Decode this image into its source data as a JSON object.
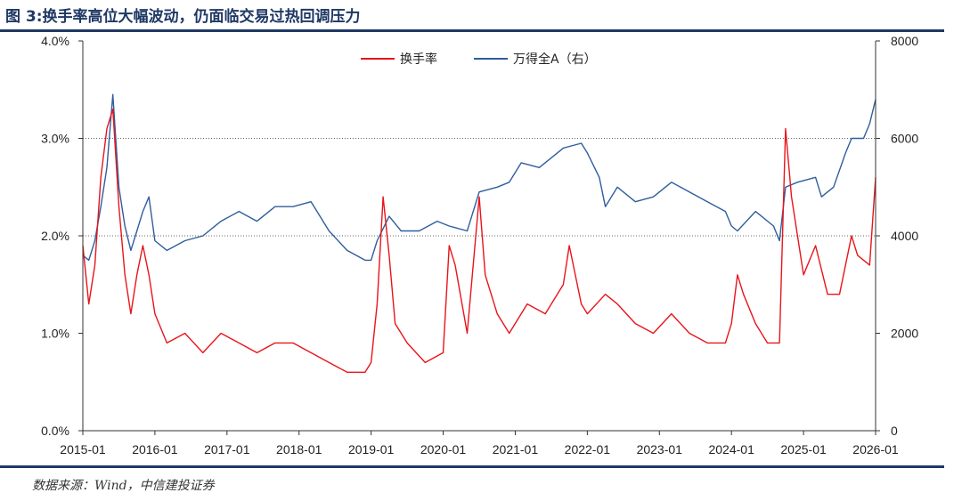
{
  "figure": {
    "title": "图 3:换手率高位大幅波动，仍面临交易过热回调压力",
    "source": "数据来源：Wind，中信建投证券"
  },
  "colors": {
    "turnover": "#e8141b",
    "index": "#2e5e9c",
    "axis": "#333333",
    "gridline": "#666666",
    "rule": "#1f3864"
  },
  "chart_data": {
    "type": "line",
    "title": "",
    "xlabel": "",
    "ylabel_left": "",
    "ylabel_right": "",
    "x_ticks": [
      "2015-01",
      "2016-01",
      "2017-01",
      "2018-01",
      "2019-01",
      "2020-01",
      "2021-01",
      "2022-01",
      "2023-01",
      "2024-01",
      "2025-01",
      "2026-01"
    ],
    "y_left": {
      "lim": [
        0,
        4
      ],
      "ticks": [
        "0.0%",
        "1.0%",
        "2.0%",
        "3.0%",
        "4.0%"
      ],
      "format": "percent"
    },
    "y_right": {
      "lim": [
        0,
        8000
      ],
      "ticks": [
        "0",
        "2000",
        "4000",
        "6000",
        "8000"
      ]
    },
    "grid": "horizontal dotted at 2.0% and 3.0%",
    "legend": {
      "position": "top-center",
      "entries": [
        "换手率",
        "万得全A（右）"
      ]
    },
    "x_lim": [
      "2015-01",
      "2026-01"
    ],
    "series": [
      {
        "name": "换手率",
        "axis": "left",
        "x": [
          "2015-01",
          "2015-02",
          "2015-03",
          "2015-04",
          "2015-05",
          "2015-06",
          "2015-07",
          "2015-08",
          "2015-09",
          "2015-10",
          "2015-11",
          "2015-12",
          "2016-01",
          "2016-03",
          "2016-06",
          "2016-09",
          "2016-12",
          "2017-03",
          "2017-06",
          "2017-09",
          "2017-12",
          "2018-03",
          "2018-06",
          "2018-09",
          "2018-12",
          "2019-01",
          "2019-02",
          "2019-03",
          "2019-04",
          "2019-05",
          "2019-07",
          "2019-10",
          "2020-01",
          "2020-02",
          "2020-03",
          "2020-05",
          "2020-07",
          "2020-08",
          "2020-10",
          "2020-12",
          "2021-03",
          "2021-06",
          "2021-09",
          "2021-10",
          "2021-12",
          "2022-01",
          "2022-04",
          "2022-06",
          "2022-09",
          "2022-12",
          "2023-03",
          "2023-06",
          "2023-09",
          "2023-12",
          "2024-01",
          "2024-02",
          "2024-03",
          "2024-05",
          "2024-07",
          "2024-09",
          "2024-10",
          "2024-11",
          "2025-01",
          "2025-03",
          "2025-05",
          "2025-07",
          "2025-09",
          "2025-10",
          "2025-12",
          "2026-01"
        ],
        "values": [
          1.9,
          1.3,
          1.7,
          2.6,
          3.1,
          3.3,
          2.3,
          1.6,
          1.2,
          1.6,
          1.9,
          1.6,
          1.2,
          0.9,
          1.0,
          0.8,
          1.0,
          0.9,
          0.8,
          0.9,
          0.9,
          0.8,
          0.7,
          0.6,
          0.6,
          0.7,
          1.3,
          2.4,
          1.8,
          1.1,
          0.9,
          0.7,
          0.8,
          1.9,
          1.7,
          1.0,
          2.4,
          1.6,
          1.2,
          1.0,
          1.3,
          1.2,
          1.5,
          1.9,
          1.3,
          1.2,
          1.4,
          1.3,
          1.1,
          1.0,
          1.2,
          1.0,
          0.9,
          0.9,
          1.1,
          1.6,
          1.4,
          1.1,
          0.9,
          0.9,
          3.1,
          2.4,
          1.6,
          1.9,
          1.4,
          1.4,
          2.0,
          1.8,
          1.7,
          2.6
        ]
      },
      {
        "name": "万得全A（右）",
        "axis": "right",
        "x": [
          "2015-01",
          "2015-02",
          "2015-03",
          "2015-04",
          "2015-05",
          "2015-06",
          "2015-07",
          "2015-08",
          "2015-09",
          "2015-10",
          "2015-11",
          "2015-12",
          "2016-01",
          "2016-03",
          "2016-06",
          "2016-09",
          "2016-12",
          "2017-03",
          "2017-06",
          "2017-09",
          "2017-12",
          "2018-03",
          "2018-06",
          "2018-09",
          "2018-12",
          "2019-01",
          "2019-02",
          "2019-04",
          "2019-06",
          "2019-09",
          "2019-12",
          "2020-02",
          "2020-05",
          "2020-07",
          "2020-10",
          "2020-12",
          "2021-02",
          "2021-05",
          "2021-09",
          "2021-12",
          "2022-01",
          "2022-03",
          "2022-04",
          "2022-06",
          "2022-09",
          "2022-12",
          "2023-03",
          "2023-06",
          "2023-09",
          "2023-12",
          "2024-01",
          "2024-02",
          "2024-05",
          "2024-08",
          "2024-09",
          "2024-10",
          "2024-12",
          "2025-03",
          "2025-04",
          "2025-06",
          "2025-08",
          "2025-09",
          "2025-11",
          "2025-12",
          "2026-01"
        ],
        "values": [
          3600,
          3500,
          3900,
          4600,
          5400,
          6900,
          5000,
          4200,
          3700,
          4100,
          4500,
          4800,
          3900,
          3700,
          3900,
          4000,
          4300,
          4500,
          4300,
          4600,
          4600,
          4700,
          4100,
          3700,
          3500,
          3500,
          3900,
          4400,
          4100,
          4100,
          4300,
          4200,
          4100,
          4900,
          5000,
          5100,
          5500,
          5400,
          5800,
          5900,
          5700,
          5200,
          4600,
          5000,
          4700,
          4800,
          5100,
          4900,
          4700,
          4500,
          4200,
          4100,
          4500,
          4200,
          3900,
          5000,
          5100,
          5200,
          4800,
          5000,
          5700,
          6000,
          6000,
          6300,
          6800
        ]
      }
    ]
  }
}
